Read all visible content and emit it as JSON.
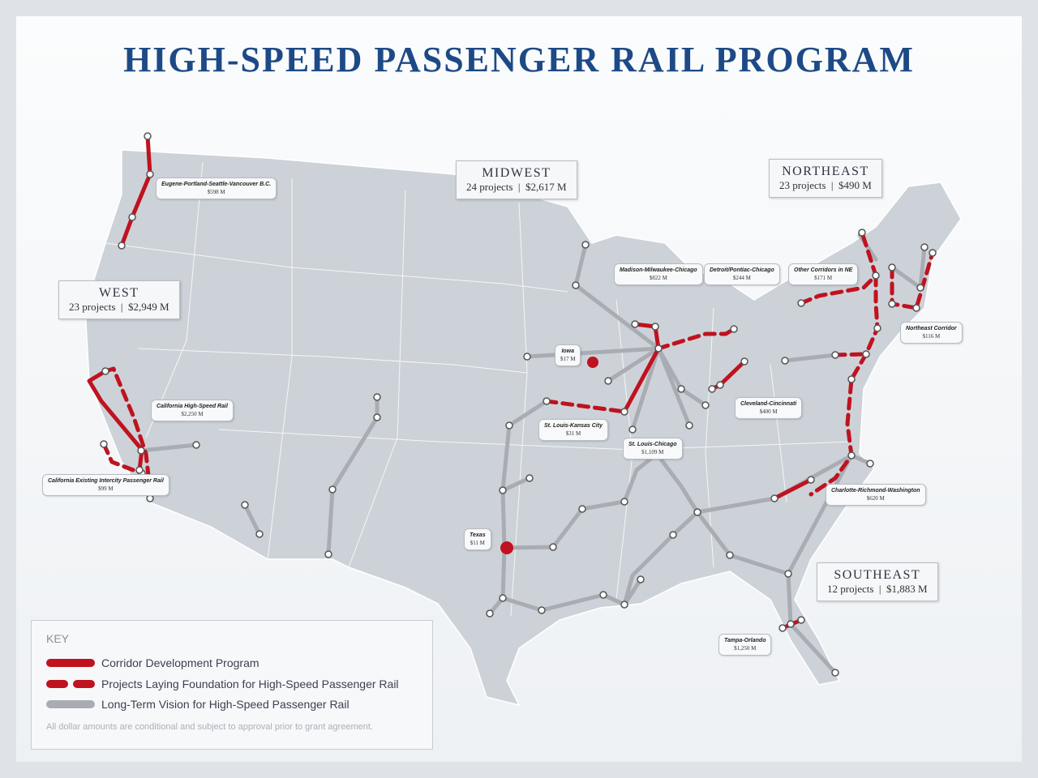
{
  "title": "HIGH-SPEED PASSENGER RAIL PROGRAM",
  "colors": {
    "title": "#1d4a86",
    "corridor": "#c0121f",
    "foundation": "#c0121f",
    "vision": "#a9adb3",
    "land": "#cdd2d8"
  },
  "regions": [
    {
      "name": "WEST",
      "projects": "23 projects",
      "amount": "$2,949 M"
    },
    {
      "name": "MIDWEST",
      "projects": "24 projects",
      "amount": "$2,617 M"
    },
    {
      "name": "NORTHEAST",
      "projects": "23 projects",
      "amount": "$490 M"
    },
    {
      "name": "SOUTHEAST",
      "projects": "12 projects",
      "amount": "$1,883 M"
    }
  ],
  "labels": [
    {
      "name": "Eugene-Portland-Seattle-Vancouver B.C.",
      "amount": "$598 M"
    },
    {
      "name": "Madison-Milwaukee-Chicago",
      "amount": "$822 M"
    },
    {
      "name": "Detroit/Pontiac-Chicago",
      "amount": "$244 M"
    },
    {
      "name": "Other Corridors in NE",
      "amount": "$171 M"
    },
    {
      "name": "Northeast Corridor",
      "amount": "$116 M"
    },
    {
      "name": "Iowa",
      "amount": "$17 M"
    },
    {
      "name": "California High-Speed Rail",
      "amount": "$2,250 M"
    },
    {
      "name": "Cleveland-Cincinnati",
      "amount": "$400 M"
    },
    {
      "name": "St. Louis-Kansas City",
      "amount": "$31 M"
    },
    {
      "name": "St. Louis-Chicago",
      "amount": "$1,109 M"
    },
    {
      "name": "California Existing Intercity Passenger Rail",
      "amount": "$99 M"
    },
    {
      "name": "Charlotte-Richmond-Washington",
      "amount": "$620 M"
    },
    {
      "name": "Texas",
      "amount": "$11 M"
    },
    {
      "name": "Tampa-Orlando",
      "amount": "$1,250 M"
    }
  ],
  "key": {
    "title": "KEY",
    "items": [
      {
        "label": "Corridor Development Program",
        "style": "solid-red"
      },
      {
        "label": "Projects Laying Foundation for High-Speed Passenger Rail",
        "style": "dashed-red"
      },
      {
        "label": "Long-Term Vision for High-Speed Passenger Rail",
        "style": "solid-gray"
      }
    ],
    "note": "All dollar amounts are conditional and subject to approval prior to grant agreement."
  }
}
